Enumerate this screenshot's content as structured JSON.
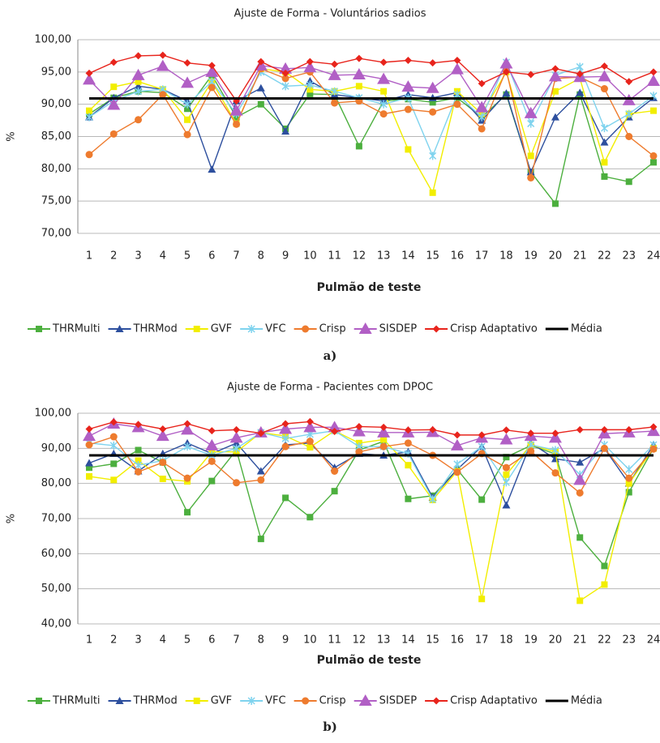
{
  "chart_data": [
    {
      "type": "line",
      "title": "Ajuste de Forma - Voluntários sadios",
      "x_label": "Pulmão de teste",
      "y_label": "%",
      "caption": "a)",
      "categories": [
        "1",
        "2",
        "3",
        "4",
        "5",
        "6",
        "7",
        "8",
        "9",
        "10",
        "11",
        "12",
        "13",
        "14",
        "15",
        "16",
        "17",
        "18",
        "19",
        "20",
        "21",
        "22",
        "23",
        "24"
      ],
      "ylim": [
        70,
        100
      ],
      "yticks": [
        {
          "value": 70,
          "label": "70,00"
        },
        {
          "value": 75,
          "label": "75,00"
        },
        {
          "value": 80,
          "label": "80,00"
        },
        {
          "value": 85,
          "label": "85,00"
        },
        {
          "value": 90,
          "label": "90,00"
        },
        {
          "value": 95,
          "label": "95,00"
        },
        {
          "value": 100,
          "label": "100,00"
        }
      ],
      "grid": true,
      "legend": "bottom",
      "series": [
        {
          "name": "THRMulti",
          "color": "#4caf3e",
          "marker": "square",
          "values": [
            88.5,
            91,
            92,
            91.8,
            89.3,
            94.5,
            88,
            90,
            86.2,
            91.6,
            91.5,
            83.5,
            90.5,
            90.8,
            90.3,
            91,
            88,
            91.5,
            79.5,
            74.6,
            91.5,
            78.8,
            78,
            81
          ]
        },
        {
          "name": "THRMod",
          "color": "#2d4f9e",
          "marker": "triangle",
          "values": [
            88,
            91,
            92.8,
            92.3,
            90.5,
            79.9,
            90.5,
            92.5,
            85.8,
            93.6,
            91.5,
            91,
            90.5,
            91.5,
            91,
            91.8,
            87.5,
            91.7,
            79.5,
            88,
            91.8,
            84.1,
            88,
            91
          ]
        },
        {
          "name": "GVF",
          "color": "#f2ee00",
          "marker": "square",
          "values": [
            89,
            92.7,
            93.5,
            92.3,
            87.6,
            93.5,
            87,
            95.5,
            95,
            92.3,
            92,
            92.8,
            92,
            83,
            76.3,
            92,
            88.5,
            95,
            82,
            92,
            94,
            81,
            88.5,
            89
          ]
        },
        {
          "name": "VFC",
          "color": "#7fd3ee",
          "marker": "star",
          "values": [
            88,
            90.5,
            92,
            92.3,
            90,
            93.5,
            88.5,
            95,
            92.8,
            93,
            92,
            91,
            90,
            91,
            82,
            91.5,
            88,
            96.5,
            87,
            94.5,
            95.8,
            86.3,
            88.5,
            91.3
          ]
        },
        {
          "name": "Crisp",
          "color": "#ee7b2e",
          "marker": "circle",
          "values": [
            82.2,
            85.4,
            87.6,
            91.5,
            85.3,
            92.6,
            86.9,
            95.5,
            94,
            95,
            90.2,
            90.5,
            88.5,
            89.2,
            88.8,
            90,
            86.2,
            95.3,
            78.6,
            94,
            94.2,
            92.4,
            85,
            82
          ]
        },
        {
          "name": "SISDEP",
          "color": "#b15fc5",
          "marker": "big-triangle",
          "values": [
            93.8,
            89.9,
            94.5,
            95.9,
            93.3,
            95,
            89,
            96,
            95.5,
            95.7,
            94.5,
            94.6,
            93.9,
            92.7,
            92.5,
            95.4,
            89.5,
            96.3,
            88.6,
            94.3,
            94.2,
            94.3,
            90.6,
            93.6
          ]
        },
        {
          "name": "Crisp Adaptativo",
          "color": "#e8241c",
          "marker": "diamond",
          "values": [
            94.8,
            96.5,
            97.5,
            97.6,
            96.4,
            96,
            90.5,
            96.6,
            94.8,
            96.6,
            96.2,
            97.1,
            96.5,
            96.8,
            96.4,
            96.8,
            93.2,
            95,
            94.6,
            95.5,
            94.7,
            95.9,
            93.5,
            95
          ]
        },
        {
          "name": "Média",
          "color": "#000000",
          "marker": "none",
          "values": [
            90.9,
            90.9,
            90.9,
            90.9,
            90.9,
            90.9,
            90.9,
            90.9,
            90.9,
            90.9,
            90.9,
            90.9,
            90.9,
            90.9,
            90.9,
            90.9,
            90.9,
            90.9,
            90.9,
            90.9,
            90.9,
            90.9,
            90.9,
            90.9
          ]
        }
      ]
    },
    {
      "type": "line",
      "title": "Ajuste de Forma - Pacientes com DPOC",
      "x_label": "Pulmão de teste",
      "y_label": "%",
      "caption": "b)",
      "categories": [
        "1",
        "2",
        "3",
        "4",
        "5",
        "6",
        "7",
        "8",
        "9",
        "10",
        "11",
        "12",
        "13",
        "14",
        "15",
        "16",
        "17",
        "18",
        "19",
        "20",
        "21",
        "22",
        "23",
        "24"
      ],
      "ylim": [
        40,
        100
      ],
      "yticks": [
        {
          "value": 40,
          "label": "40,00"
        },
        {
          "value": 50,
          "label": "50,00"
        },
        {
          "value": 60,
          "label": "60,00"
        },
        {
          "value": 70,
          "label": "70,00"
        },
        {
          "value": 80,
          "label": "80,00"
        },
        {
          "value": 90,
          "label": "90,00"
        },
        {
          "value": 100,
          "label": "100,00"
        }
      ],
      "grid": true,
      "legend": "bottom",
      "series": [
        {
          "name": "THRMulti",
          "color": "#4caf3e",
          "marker": "square",
          "values": [
            84.5,
            85.6,
            89.5,
            86,
            71.8,
            80.7,
            89.5,
            64.2,
            75.9,
            70.4,
            77.8,
            89.5,
            92,
            75.6,
            76.5,
            84,
            75.4,
            87.5,
            90.8,
            88.4,
            64.6,
            56.5,
            77.5,
            90
          ]
        },
        {
          "name": "THRMod",
          "color": "#2d4f9e",
          "marker": "triangle",
          "values": [
            85.8,
            88.5,
            83.5,
            88.5,
            91.5,
            88.5,
            91.5,
            83.5,
            91,
            91.5,
            84.5,
            88.5,
            88,
            89,
            76,
            84,
            90.5,
            73.8,
            91.5,
            87,
            86,
            90,
            80,
            91
          ]
        },
        {
          "name": "GVF",
          "color": "#f2ee00",
          "marker": "square",
          "values": [
            82,
            81,
            86.5,
            81.3,
            80.6,
            89,
            89,
            94.5,
            93.5,
            90.3,
            95,
            91.5,
            92.5,
            85.2,
            75.3,
            83.5,
            47.1,
            82.5,
            91,
            89,
            46.6,
            51.2,
            80,
            90
          ]
        },
        {
          "name": "VFC",
          "color": "#7fd3ee",
          "marker": "star",
          "values": [
            91.5,
            90.8,
            85.2,
            86.5,
            90.5,
            88,
            90,
            94.5,
            92.8,
            94,
            95,
            90.5,
            90.5,
            88.5,
            75.5,
            85.5,
            90.5,
            80.3,
            91,
            89.5,
            82.5,
            91,
            84,
            91
          ]
        },
        {
          "name": "Crisp",
          "color": "#ee7b2e",
          "marker": "circle",
          "values": [
            91,
            93.3,
            83.3,
            86,
            81.5,
            86.3,
            80.2,
            81,
            90.5,
            92,
            83.5,
            89,
            90.5,
            91.5,
            88,
            83.2,
            88.5,
            84.5,
            89.2,
            83,
            77.3,
            90,
            81.5,
            89.8
          ]
        },
        {
          "name": "SISDEP",
          "color": "#b15fc5",
          "marker": "big-triangle",
          "values": [
            93.5,
            97,
            96,
            93.5,
            95.3,
            90.8,
            93,
            94.5,
            95.5,
            96,
            96,
            94.8,
            94.5,
            94.5,
            94.6,
            90.8,
            93,
            92.5,
            93.5,
            93,
            81,
            94.2,
            94.5,
            94.9
          ]
        },
        {
          "name": "Crisp Adaptativo",
          "color": "#e8241c",
          "marker": "diamond",
          "values": [
            95.5,
            97.5,
            96.8,
            95.5,
            97,
            95,
            95.3,
            94.3,
            97,
            97.6,
            94.8,
            96.2,
            96,
            95.2,
            95.3,
            93.8,
            93.8,
            95.2,
            94.3,
            94.3,
            95.3,
            95.3,
            95.3,
            96.1
          ]
        },
        {
          "name": "Média",
          "color": "#000000",
          "marker": "none",
          "values": [
            88,
            88,
            88,
            88,
            88,
            88,
            88,
            88,
            88,
            88,
            88,
            88,
            88,
            88,
            88,
            88,
            88,
            88,
            88,
            88,
            88,
            88,
            88,
            88
          ]
        }
      ]
    }
  ]
}
